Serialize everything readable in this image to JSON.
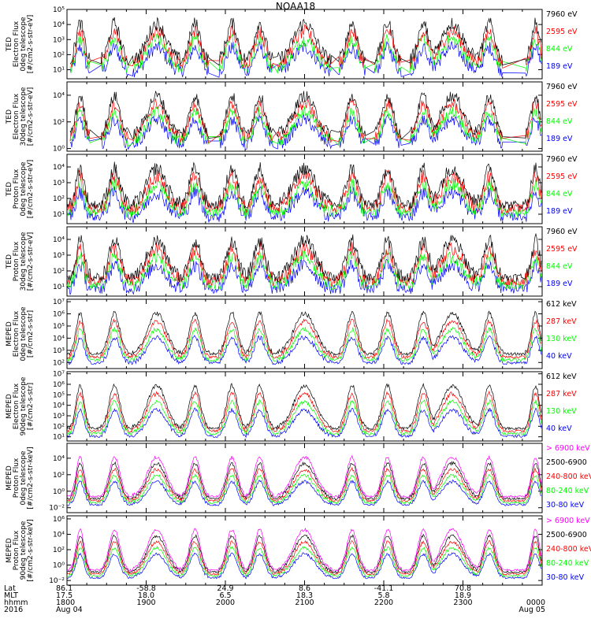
{
  "title": "NOAA18",
  "colors": {
    "black": "#000000",
    "red": "#ff0000",
    "green": "#00ff00",
    "blue": "#0000ff",
    "magenta": "#ff00ff"
  },
  "chart_data": {
    "type": "line",
    "time_range": [
      "1800",
      "0000"
    ],
    "panels": [
      {
        "ylabel": [
          "TED",
          "Electron Flux",
          "0deg telescope",
          "[#/cm2-s-str-eV]"
        ],
        "ytick_exp": [
          1,
          2,
          3,
          4,
          5
        ],
        "ylim_exp": [
          0.4,
          5
        ],
        "legend": [
          {
            "label": "7960 eV",
            "color": "#000000"
          },
          {
            "label": "2595 eV",
            "color": "#ff0000"
          },
          {
            "label": "844 eV",
            "color": "#00ff00"
          },
          {
            "label": "189 eV",
            "color": "#0000ff"
          }
        ]
      },
      {
        "ylabel": [
          "TED",
          "Electron Flux",
          "30deg telescope",
          "[#/cm2-s-str-eV]"
        ],
        "ytick_exp": [
          0,
          2,
          4
        ],
        "ylim_exp": [
          -0.2,
          5
        ],
        "legend": [
          {
            "label": "7960 eV",
            "color": "#000000"
          },
          {
            "label": "2595 eV",
            "color": "#ff0000"
          },
          {
            "label": "844 eV",
            "color": "#00ff00"
          },
          {
            "label": "189 eV",
            "color": "#0000ff"
          }
        ]
      },
      {
        "ylabel": [
          "TED",
          "Proton Flux",
          "0deg telescope",
          "[#/cm2-s-str-eV]"
        ],
        "ytick_exp": [
          1,
          2,
          3,
          4
        ],
        "ylim_exp": [
          0.4,
          4.8
        ],
        "legend": [
          {
            "label": "7960 eV",
            "color": "#000000"
          },
          {
            "label": "2595 eV",
            "color": "#ff0000"
          },
          {
            "label": "844 eV",
            "color": "#00ff00"
          },
          {
            "label": "189 eV",
            "color": "#0000ff"
          }
        ]
      },
      {
        "ylabel": [
          "TED",
          "Proton Flux",
          "30deg telescope",
          "[#/cm2-s-str-eV]"
        ],
        "ytick_exp": [
          1,
          2,
          3,
          4
        ],
        "ylim_exp": [
          0.4,
          4.8
        ],
        "legend": [
          {
            "label": "7960 eV",
            "color": "#000000"
          },
          {
            "label": "2595 eV",
            "color": "#ff0000"
          },
          {
            "label": "844 eV",
            "color": "#00ff00"
          },
          {
            "label": "189 eV",
            "color": "#0000ff"
          }
        ]
      },
      {
        "ylabel": [
          "MEPED",
          "Electron Flux",
          "0deg telescope",
          "[#/cm2-s-str]"
        ],
        "ytick_exp": [
          2,
          3,
          4,
          5,
          6,
          7
        ],
        "ylim_exp": [
          1.5,
          7.2
        ],
        "legend": [
          {
            "label": "612 keV",
            "color": "#000000"
          },
          {
            "label": "287 keV",
            "color": "#ff0000"
          },
          {
            "label": "130 keV",
            "color": "#00ff00"
          },
          {
            "label": "40 keV",
            "color": "#0000ff"
          }
        ]
      },
      {
        "ylabel": [
          "MEPED",
          "Electron Flux",
          "90deg telescope",
          "[#/cm2-s-str]"
        ],
        "ytick_exp": [
          1,
          2,
          3,
          4,
          5,
          6,
          7
        ],
        "ylim_exp": [
          0.6,
          7.2
        ],
        "legend": [
          {
            "label": "612 keV",
            "color": "#000000"
          },
          {
            "label": "287 keV",
            "color": "#ff0000"
          },
          {
            "label": "130 keV",
            "color": "#00ff00"
          },
          {
            "label": "40 keV",
            "color": "#0000ff"
          }
        ]
      },
      {
        "ylabel": [
          "MEPED",
          "Proton Flux",
          "0deg telescope",
          "[#/cm2-s-str-keV]"
        ],
        "ytick_exp": [
          -2,
          0,
          2,
          4
        ],
        "ylim_exp": [
          -2.6,
          5.8
        ],
        "legend": [
          {
            "label": "> 6900 keV",
            "color": "#ff00ff"
          },
          {
            "label": "2500-6900",
            "color": "#000000"
          },
          {
            "label": "240-800 keV",
            "color": "#ff0000"
          },
          {
            "label": "80-240 keV",
            "color": "#00ff00"
          },
          {
            "label": "30-80 keV",
            "color": "#0000ff"
          }
        ]
      },
      {
        "ylabel": [
          "MEPED",
          "Proton Flux",
          "90deg telescope",
          "[#/cm2-s-str-keV]"
        ],
        "ytick_exp": [
          -2,
          0,
          2,
          4,
          6
        ],
        "ylim_exp": [
          -2.6,
          6.4
        ],
        "legend": [
          {
            "label": "> 6900 keV",
            "color": "#ff00ff"
          },
          {
            "label": "2500-6900",
            "color": "#000000"
          },
          {
            "label": "240-800 keV",
            "color": "#ff0000"
          },
          {
            "label": "80-240 keV",
            "color": "#00ff00"
          },
          {
            "label": "30-80 keV",
            "color": "#0000ff"
          }
        ]
      }
    ],
    "footer": {
      "row_labels": [
        "Lat",
        "MLT",
        "hhmm",
        "2016"
      ],
      "columns": [
        {
          "t": 0,
          "values": [
            "86.1",
            "17.5",
            "1800",
            "Aug 04"
          ]
        },
        {
          "t": 60,
          "values": [
            "-58.8",
            "18.0",
            "1900",
            ""
          ]
        },
        {
          "t": 120,
          "values": [
            "24.9",
            "6.5",
            "2000",
            ""
          ]
        },
        {
          "t": 180,
          "values": [
            "8.6",
            "18.3",
            "2100",
            ""
          ]
        },
        {
          "t": 240,
          "values": [
            "-41.1",
            "5.8",
            "2200",
            ""
          ]
        },
        {
          "t": 300,
          "values": [
            "70.8",
            "18.9",
            "2300",
            ""
          ]
        },
        {
          "t": 360,
          "values": [
            "",
            "",
            "0000",
            "Aug 05"
          ]
        }
      ]
    },
    "passes": [
      {
        "center": 10,
        "width": 6
      },
      {
        "center": 36,
        "width": 8
      },
      {
        "center": 68,
        "width": 14
      },
      {
        "center": 97,
        "width": 8
      },
      {
        "center": 125,
        "width": 8
      },
      {
        "center": 146,
        "width": 8
      },
      {
        "center": 180,
        "width": 16
      },
      {
        "center": 216,
        "width": 8
      },
      {
        "center": 243,
        "width": 8
      },
      {
        "center": 270,
        "width": 8
      },
      {
        "center": 292,
        "width": 16
      },
      {
        "center": 320,
        "width": 8
      },
      {
        "center": 355,
        "width": 6
      }
    ]
  }
}
